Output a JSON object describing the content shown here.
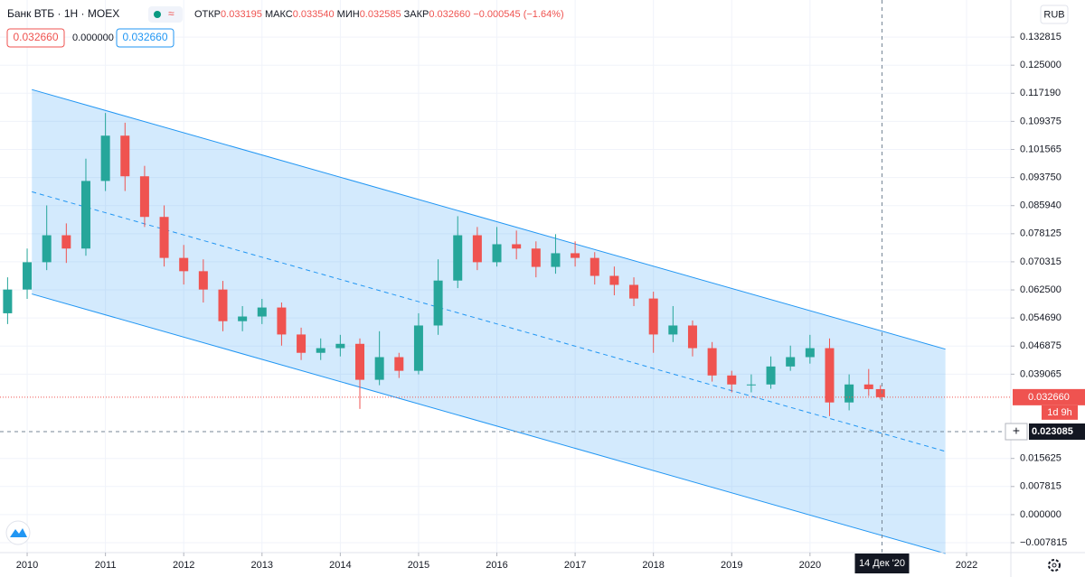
{
  "header": {
    "symbol": "Банк ВТБ",
    "interval": "1Н",
    "exchange": "MOEX",
    "open_label": "ОТКР",
    "open": "0.033195",
    "high_label": "МАКС",
    "high": "0.033540",
    "low_label": "МИН",
    "low": "0.032585",
    "close_label": "ЗАКР",
    "close": "0.032660",
    "change": "−0.000545 (−1.64%)",
    "bid": "0.032660",
    "spread": "0.000000",
    "ask": "0.032660",
    "currency": "RUB"
  },
  "chart_data": {
    "type": "candlestick",
    "x": [
      2009.75,
      2010,
      2010.25,
      2010.5,
      2010.75,
      2011,
      2011.25,
      2011.5,
      2011.75,
      2012,
      2012.25,
      2012.5,
      2012.75,
      2013,
      2013.25,
      2013.5,
      2013.75,
      2014,
      2014.25,
      2014.5,
      2014.75,
      2015,
      2015.25,
      2015.5,
      2015.75,
      2016,
      2016.25,
      2016.5,
      2016.75,
      2017,
      2017.25,
      2017.5,
      2017.75,
      2018,
      2018.25,
      2018.5,
      2018.75,
      2019,
      2019.25,
      2019.5,
      2019.75,
      2020,
      2020.25,
      2020.5,
      2020.75,
      2020.9
    ],
    "open": [
      0.056,
      0.0626,
      0.0702,
      0.0777,
      0.074,
      0.0928,
      0.1054,
      0.0941,
      0.0828,
      0.0714,
      0.0677,
      0.0626,
      0.0538,
      0.0551,
      0.0576,
      0.0501,
      0.045,
      0.0463,
      0.0475,
      0.0375,
      0.0438,
      0.04,
      0.0526,
      0.0651,
      0.0777,
      0.0702,
      0.0752,
      0.074,
      0.0689,
      0.0727,
      0.0714,
      0.0664,
      0.0639,
      0.0601,
      0.0501,
      0.0526,
      0.0463,
      0.0387,
      0.0362,
      0.0362,
      0.0412,
      0.0438,
      0.0463,
      0.0312,
      0.0362,
      0.0349
    ],
    "high": [
      0.066,
      0.074,
      0.086,
      0.081,
      0.099,
      0.1117,
      0.109,
      0.097,
      0.086,
      0.075,
      0.071,
      0.065,
      0.058,
      0.06,
      0.059,
      0.052,
      0.049,
      0.05,
      0.049,
      0.051,
      0.045,
      0.056,
      0.071,
      0.083,
      0.08,
      0.08,
      0.079,
      0.076,
      0.078,
      0.076,
      0.073,
      0.069,
      0.066,
      0.062,
      0.058,
      0.054,
      0.048,
      0.04,
      0.039,
      0.044,
      0.047,
      0.05,
      0.049,
      0.039,
      0.0405,
      0.036
    ],
    "low": [
      0.053,
      0.06,
      0.068,
      0.07,
      0.072,
      0.09,
      0.09,
      0.08,
      0.069,
      0.064,
      0.059,
      0.051,
      0.051,
      0.053,
      0.047,
      0.043,
      0.043,
      0.044,
      0.0294,
      0.036,
      0.038,
      0.039,
      0.05,
      0.063,
      0.068,
      0.069,
      0.071,
      0.066,
      0.067,
      0.069,
      0.064,
      0.061,
      0.058,
      0.045,
      0.048,
      0.044,
      0.037,
      0.034,
      0.034,
      0.035,
      0.04,
      0.042,
      0.0274,
      0.029,
      0.033,
      0.032
    ],
    "close": [
      0.0626,
      0.0702,
      0.0777,
      0.074,
      0.0928,
      0.1054,
      0.0941,
      0.0828,
      0.0714,
      0.0677,
      0.0626,
      0.0538,
      0.0551,
      0.0576,
      0.0501,
      0.045,
      0.0463,
      0.0475,
      0.0375,
      0.0438,
      0.04,
      0.0526,
      0.0651,
      0.0777,
      0.0702,
      0.0752,
      0.074,
      0.0689,
      0.0727,
      0.0714,
      0.0664,
      0.0639,
      0.0601,
      0.0501,
      0.0526,
      0.0463,
      0.0387,
      0.0362,
      0.0362,
      0.0412,
      0.0438,
      0.0463,
      0.0312,
      0.0362,
      0.0349,
      0.03266
    ],
    "up_color": "#26a69a",
    "down_color": "#ef5350",
    "channel": {
      "x": [
        2010.06,
        2021.73
      ],
      "upper": [
        0.11822,
        0.04602
      ],
      "middle": [
        0.08979,
        0.01759
      ],
      "lower": [
        0.06137,
        -0.01083
      ],
      "color": "#2196f3"
    },
    "xlim": [
      2009.653,
      2022.566
    ],
    "ylim": [
      -0.01057,
      0.14313
    ],
    "xticks": [
      2010,
      2011,
      2012,
      2013,
      2014,
      2015,
      2016,
      2017,
      2018,
      2019,
      2020,
      2022
    ],
    "yticks": [
      {
        "value": 0.132815,
        "label": "0.132815"
      },
      {
        "value": 0.125,
        "label": "0.125000"
      },
      {
        "value": 0.11719,
        "label": "0.117190"
      },
      {
        "value": 0.109375,
        "label": "0.109375"
      },
      {
        "value": 0.101565,
        "label": "0.101565"
      },
      {
        "value": 0.09375,
        "label": "0.093750"
      },
      {
        "value": 0.08594,
        "label": "0.085940"
      },
      {
        "value": 0.078125,
        "label": "0.078125"
      },
      {
        "value": 0.070315,
        "label": "0.070315"
      },
      {
        "value": 0.0625,
        "label": "0.062500"
      },
      {
        "value": 0.05469,
        "label": "0.054690"
      },
      {
        "value": 0.046875,
        "label": "0.046875"
      },
      {
        "value": 0.039065,
        "label": "0.039065"
      },
      {
        "value": 0.015625,
        "label": "0.015625"
      },
      {
        "value": 0.007815,
        "label": "0.007815"
      },
      {
        "value": 0,
        "label": "0.000000"
      },
      {
        "value": -0.007815,
        "label": "−0.007815"
      }
    ],
    "last_price": {
      "value": 0.03266,
      "label": "0.032660"
    },
    "countdown": "1d 9h",
    "crosshair": {
      "x": 2020.92,
      "x_label": "14 Дек '20",
      "y": 0.023085
    }
  }
}
